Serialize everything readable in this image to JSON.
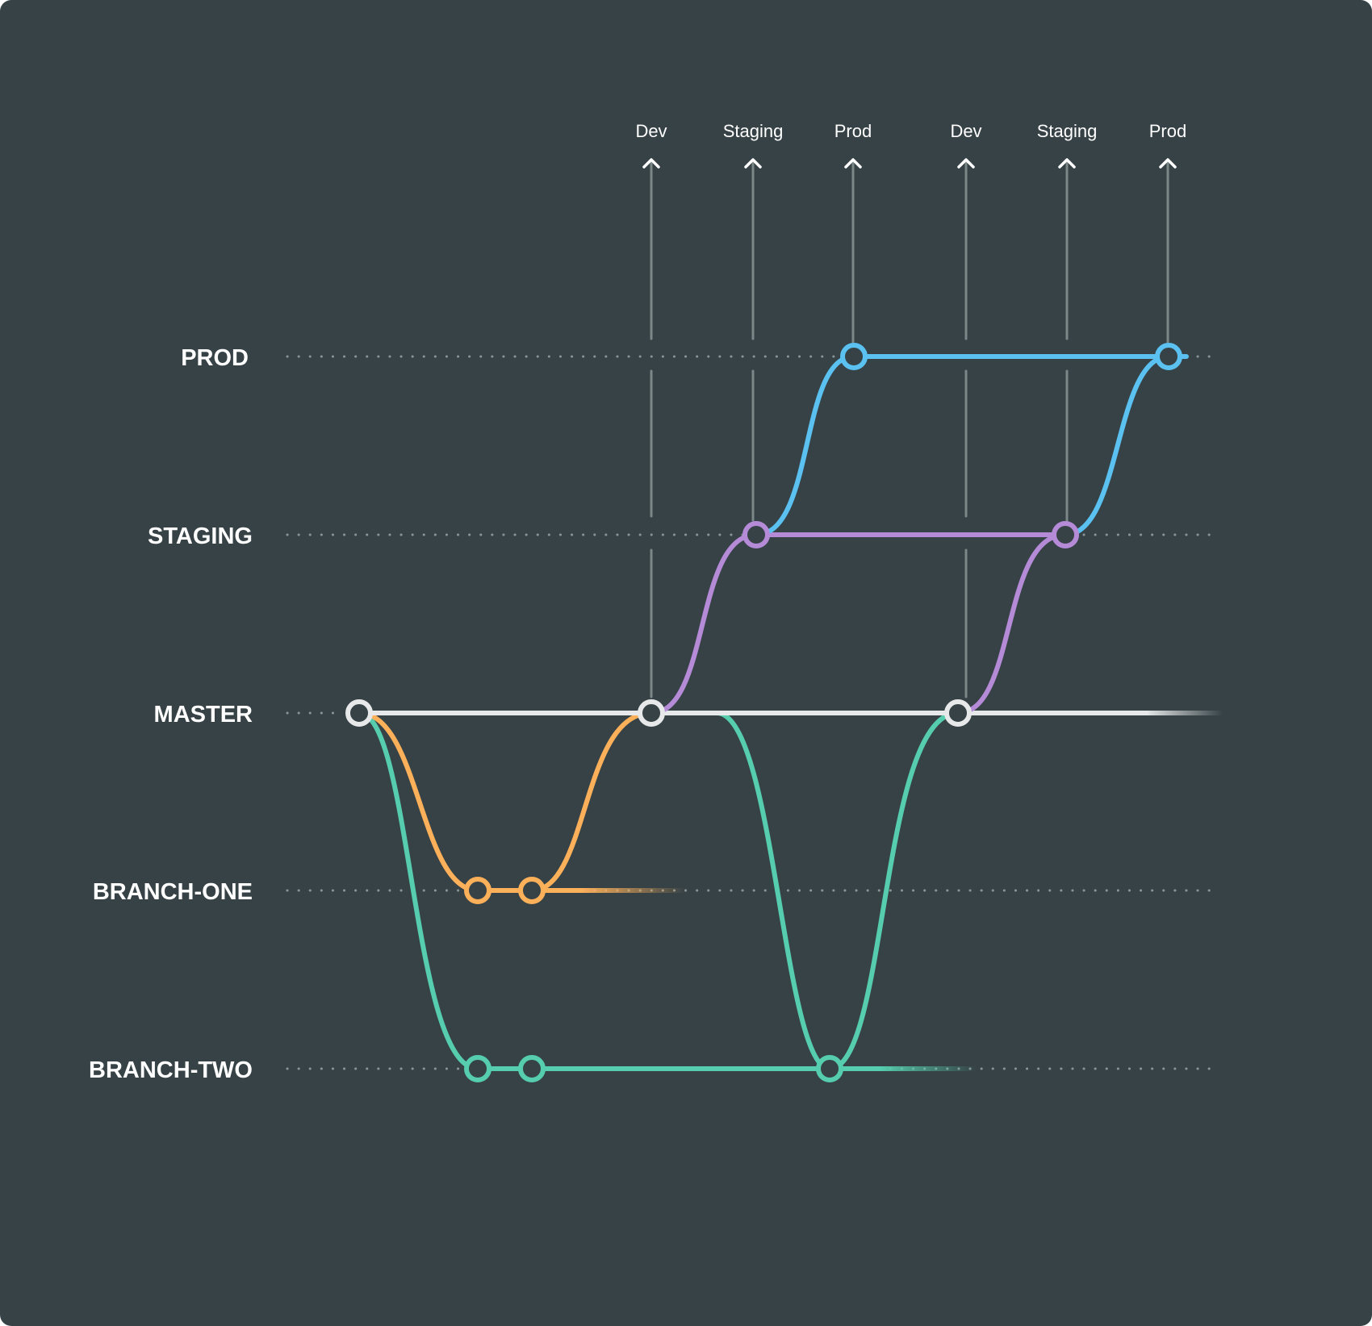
{
  "lanes": [
    {
      "id": "prod",
      "label": "PROD",
      "color": "#5ac1f1"
    },
    {
      "id": "staging",
      "label": "STAGING",
      "color": "#b58bd8"
    },
    {
      "id": "master",
      "label": "MASTER",
      "color": "#e6e8e9"
    },
    {
      "id": "branch-one",
      "label": "BRANCH-ONE",
      "color": "#fcb05a"
    },
    {
      "id": "branch-two",
      "label": "BRANCH-TWO",
      "color": "#55cdae"
    }
  ],
  "deploy_targets": [
    {
      "label": "Dev"
    },
    {
      "label": "Staging"
    },
    {
      "label": "Prod"
    },
    {
      "label": "Dev"
    },
    {
      "label": "Staging"
    },
    {
      "label": "Prod"
    }
  ],
  "colors": {
    "background": "#364246",
    "guide_line": "#7c8787",
    "dotted_line": "#8b9595"
  }
}
